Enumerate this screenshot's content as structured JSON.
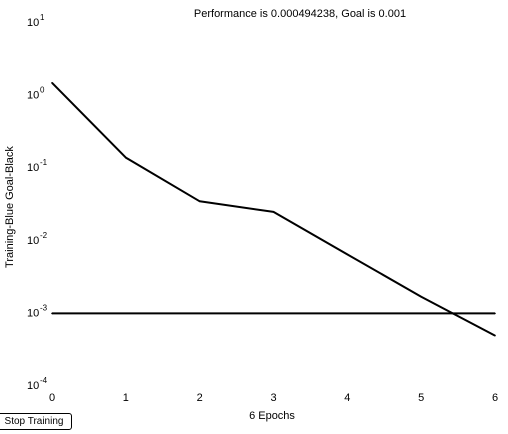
{
  "chart_data": {
    "type": "line",
    "title": "Performance is 0.000494238, Goal is 0.001",
    "xlabel": "6 Epochs",
    "ylabel": "Training-Blue  Goal-Black",
    "xlim": [
      0,
      6
    ],
    "ylim_log10": [
      -4,
      1
    ],
    "yscale": "log",
    "x_ticks": [
      "0",
      "1",
      "2",
      "3",
      "4",
      "5",
      "6"
    ],
    "y_ticks": [
      {
        "base": "10",
        "exp": "-4",
        "log10": -4
      },
      {
        "base": "10",
        "exp": "-3",
        "log10": -3
      },
      {
        "base": "10",
        "exp": "-2",
        "log10": -2
      },
      {
        "base": "10",
        "exp": "-1",
        "log10": -1
      },
      {
        "base": "10",
        "exp": "0",
        "log10": 0
      },
      {
        "base": "10",
        "exp": "1",
        "log10": 1
      }
    ],
    "grid": false,
    "series": [
      {
        "x": [
          0,
          1,
          2,
          3,
          4,
          5,
          6
        ],
        "y": [
          1.5,
          0.14,
          0.035,
          0.025,
          0.0065,
          0.0017,
          0.000494238
        ],
        "color": "#000000"
      },
      {
        "x": [
          0,
          6
        ],
        "y": [
          0.001,
          0.001
        ],
        "color": "#000000"
      }
    ]
  },
  "controls": {
    "stop_label": "Stop Training"
  }
}
